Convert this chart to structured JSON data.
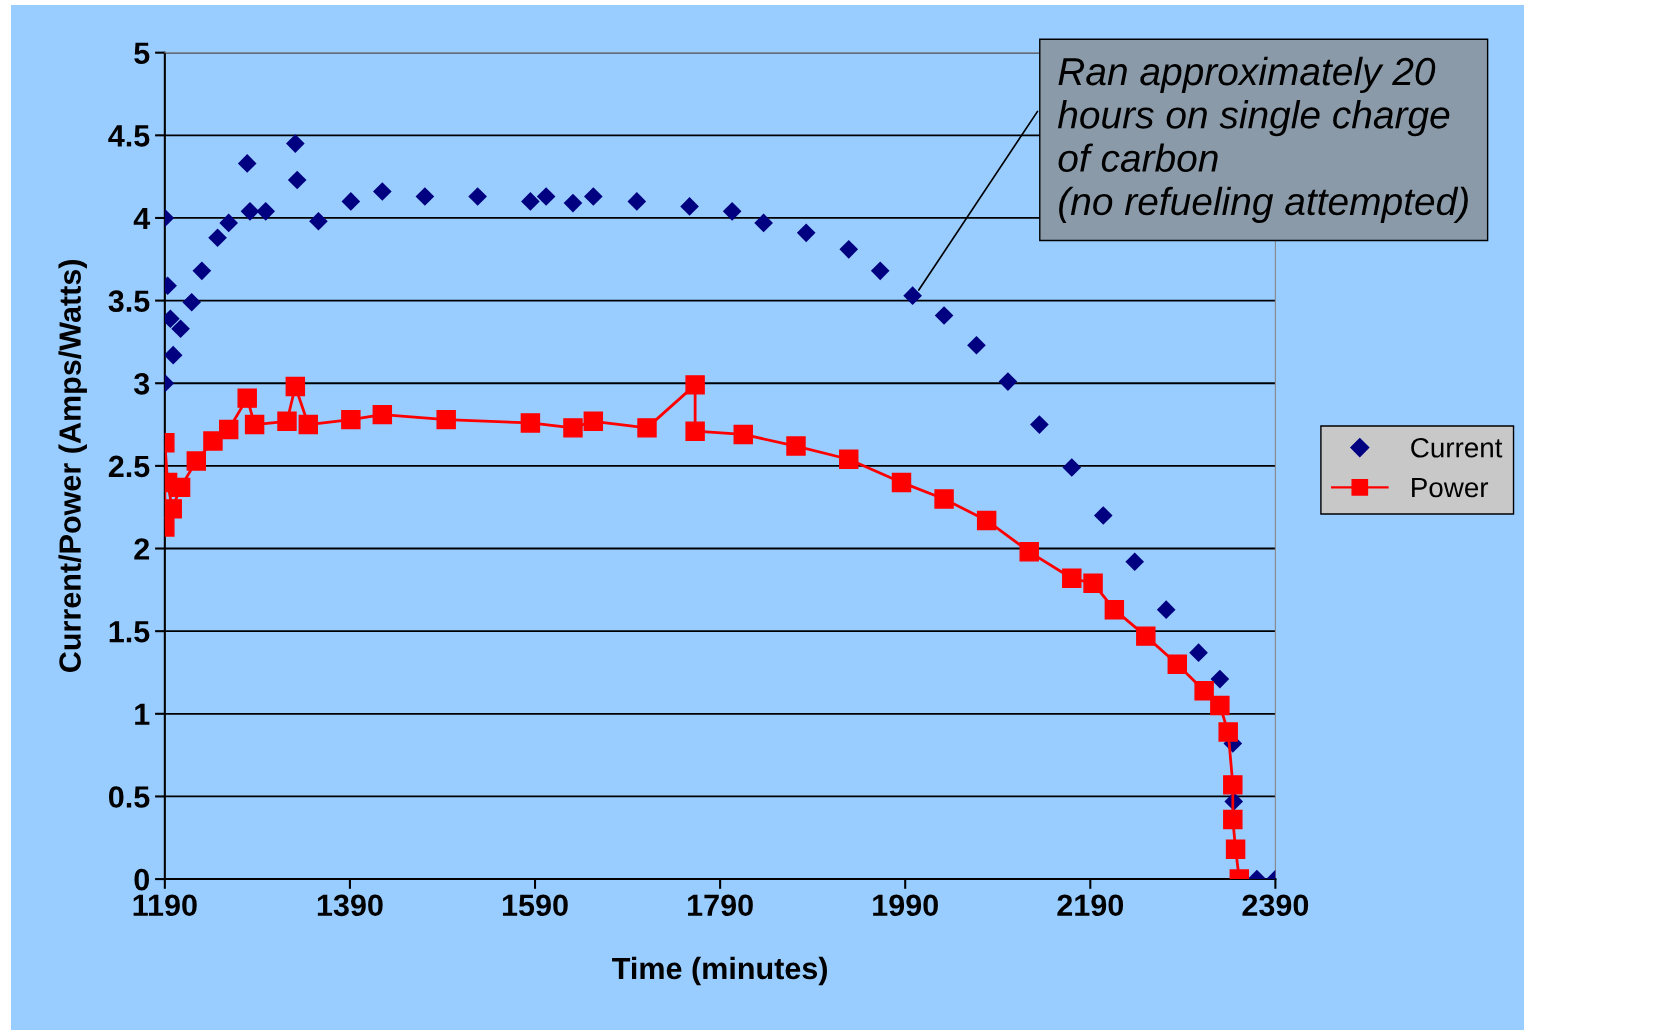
{
  "chart_data": {
    "type": "scatter",
    "xlabel": "Time (minutes)",
    "ylabel": "Current/Power (Amps/Watts)",
    "xlim": [
      1190,
      2390
    ],
    "xticks": [
      1190,
      1390,
      1590,
      1790,
      1990,
      2190,
      2390
    ],
    "ylim": [
      0,
      5
    ],
    "yticks": [
      0,
      0.5,
      1,
      1.5,
      2,
      2.5,
      3,
      3.5,
      4,
      4.5,
      5
    ],
    "grid": "y",
    "legend": "right",
    "annotations": [
      {
        "text": "Ran approximately 20\nhours on single charge\nof carbon\n(no refueling attempted)",
        "x": 2003,
        "y": 3.55
      }
    ],
    "series": [
      {
        "name": "Current",
        "marker": "diamond",
        "color": "#000080",
        "x": [
          1190,
          1190,
          1193,
          1196,
          1199,
          1207,
          1219,
          1230,
          1247,
          1259,
          1279,
          1282,
          1299,
          1331,
          1333,
          1356,
          1391,
          1425,
          1471,
          1528,
          1585,
          1602,
          1631,
          1653,
          1700,
          1757,
          1803,
          1837,
          1883,
          1929,
          1963,
          1998,
          2032,
          2067,
          2101,
          2135,
          2170,
          2204,
          2238,
          2272,
          2307,
          2330,
          2339,
          2344,
          2345,
          2347,
          2370,
          2390
        ],
        "values": [
          4.0,
          3.0,
          3.59,
          3.39,
          3.17,
          3.33,
          3.49,
          3.68,
          3.88,
          3.97,
          4.33,
          4.04,
          4.04,
          4.45,
          4.23,
          3.98,
          4.1,
          4.16,
          4.13,
          4.13,
          4.1,
          4.13,
          4.09,
          4.13,
          4.1,
          4.07,
          4.04,
          3.97,
          3.91,
          3.81,
          3.68,
          3.53,
          3.41,
          3.23,
          3.01,
          2.75,
          2.49,
          2.2,
          1.92,
          1.63,
          1.37,
          1.21,
          null,
          0.82,
          0.47,
          null,
          0,
          0
        ]
      },
      {
        "name": "Power",
        "type": "line",
        "marker": "square",
        "line_style": "solid",
        "color": "#ff0000",
        "x": [
          1190,
          1190,
          1193,
          1198,
          1207,
          1224,
          1242,
          1259,
          1279,
          1287,
          1322,
          1331,
          1345,
          1391,
          1425,
          1494,
          1585,
          1631,
          1653,
          1711,
          1763,
          1763,
          1815,
          1872,
          1929,
          1986,
          2032,
          2078,
          2124,
          2170,
          2193,
          2216,
          2250,
          2284,
          2313,
          2330,
          2339,
          2344,
          2344,
          2347,
          2351
        ],
        "values": [
          2.13,
          2.64,
          2.4,
          2.24,
          2.37,
          2.53,
          2.65,
          2.72,
          2.91,
          2.75,
          2.77,
          2.98,
          2.75,
          2.78,
          2.81,
          2.78,
          2.76,
          2.73,
          2.77,
          2.73,
          2.99,
          2.71,
          2.69,
          2.62,
          2.54,
          2.4,
          2.3,
          2.17,
          1.98,
          1.82,
          1.79,
          1.63,
          1.47,
          1.3,
          1.14,
          1.05,
          0.89,
          0.57,
          0.36,
          0.18,
          0
        ]
      }
    ]
  }
}
